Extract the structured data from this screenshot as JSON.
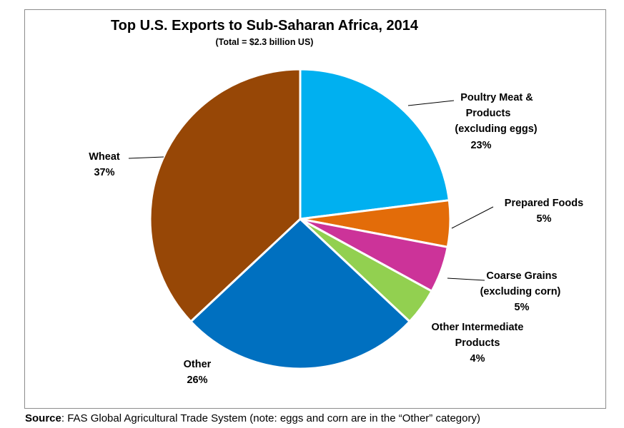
{
  "chart_data": {
    "type": "pie",
    "title": "Top U.S. Exports to Sub-Saharan Africa, 2014",
    "subtitle": "(Total = $2.3 billion US)",
    "slices": [
      {
        "label_lines": [
          "Poultry Meat &",
          "Products",
          "(excluding eggs)"
        ],
        "value_label": "23%",
        "value": 23,
        "color": "#00b0f0"
      },
      {
        "label_lines": [
          "Prepared Foods"
        ],
        "value_label": "5%",
        "value": 5,
        "color": "#e36c09"
      },
      {
        "label_lines": [
          "Coarse Grains",
          "(excluding corn)"
        ],
        "value_label": "5%",
        "value": 5,
        "color": "#cc3399"
      },
      {
        "label_lines": [
          "Other Intermediate",
          "Products"
        ],
        "value_label": "4%",
        "value": 4,
        "color": "#92d050"
      },
      {
        "label_lines": [
          "Other"
        ],
        "value_label": "26%",
        "value": 26,
        "color": "#0070c0"
      },
      {
        "label_lines": [
          "Wheat"
        ],
        "value_label": "37%",
        "value": 37,
        "color": "#974706"
      }
    ]
  },
  "source": {
    "label": "Source",
    "text": ": FAS Global Agricultural Trade System (note: eggs and corn are in the “Other” category)"
  }
}
